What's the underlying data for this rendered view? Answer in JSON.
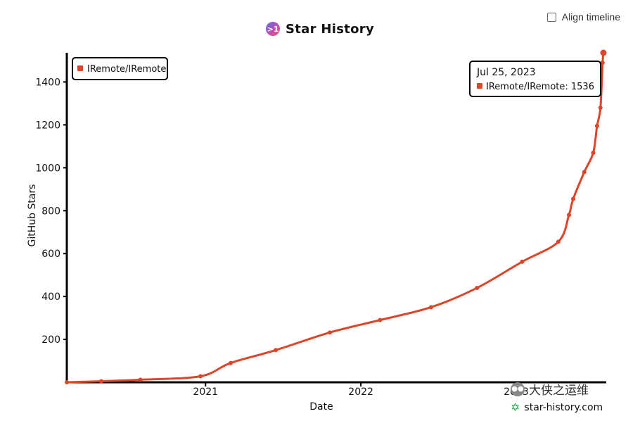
{
  "header": {
    "logo_text": ">1",
    "title": "Star History"
  },
  "controls": {
    "align_timeline_label": "Align timeline",
    "align_timeline_checked": false
  },
  "watermark": {
    "wechat_name": "大侠之运维",
    "site": "star-history.com"
  },
  "tooltip": {
    "date": "Jul 25, 2023",
    "series": "IRemote/IRemote",
    "value_text": "IRemote/IRemote: 1536"
  },
  "colors": {
    "series": "#dd4528",
    "axis": "#000000"
  },
  "chart_data": {
    "type": "line",
    "title": "Star History",
    "xlabel": "Date",
    "ylabel": "GitHub Stars",
    "x_ticks": [
      "2021",
      "2022",
      "2023"
    ],
    "y_ticks": [
      200,
      400,
      600,
      800,
      1000,
      1200,
      1400
    ],
    "ylim": [
      0,
      1536
    ],
    "xlim": [
      "2020-02-10",
      "2023-07-25"
    ],
    "legend": "top-left",
    "grid": false,
    "series": [
      {
        "name": "IRemote/IRemote",
        "points": [
          [
            "2020-02-10",
            0
          ],
          [
            "2020-05-01",
            5
          ],
          [
            "2020-08-01",
            12
          ],
          [
            "2020-12-20",
            28
          ],
          [
            "2021-03-01",
            90
          ],
          [
            "2021-06-15",
            150
          ],
          [
            "2021-10-20",
            232
          ],
          [
            "2022-02-15",
            290
          ],
          [
            "2022-06-15",
            350
          ],
          [
            "2022-10-01",
            440
          ],
          [
            "2023-01-15",
            562
          ],
          [
            "2023-04-10",
            655
          ],
          [
            "2023-05-05",
            780
          ],
          [
            "2023-05-15",
            855
          ],
          [
            "2023-06-10",
            980
          ],
          [
            "2023-07-01",
            1070
          ],
          [
            "2023-07-10",
            1195
          ],
          [
            "2023-07-18",
            1280
          ],
          [
            "2023-07-23",
            1490
          ],
          [
            "2023-07-25",
            1536
          ]
        ]
      }
    ]
  }
}
